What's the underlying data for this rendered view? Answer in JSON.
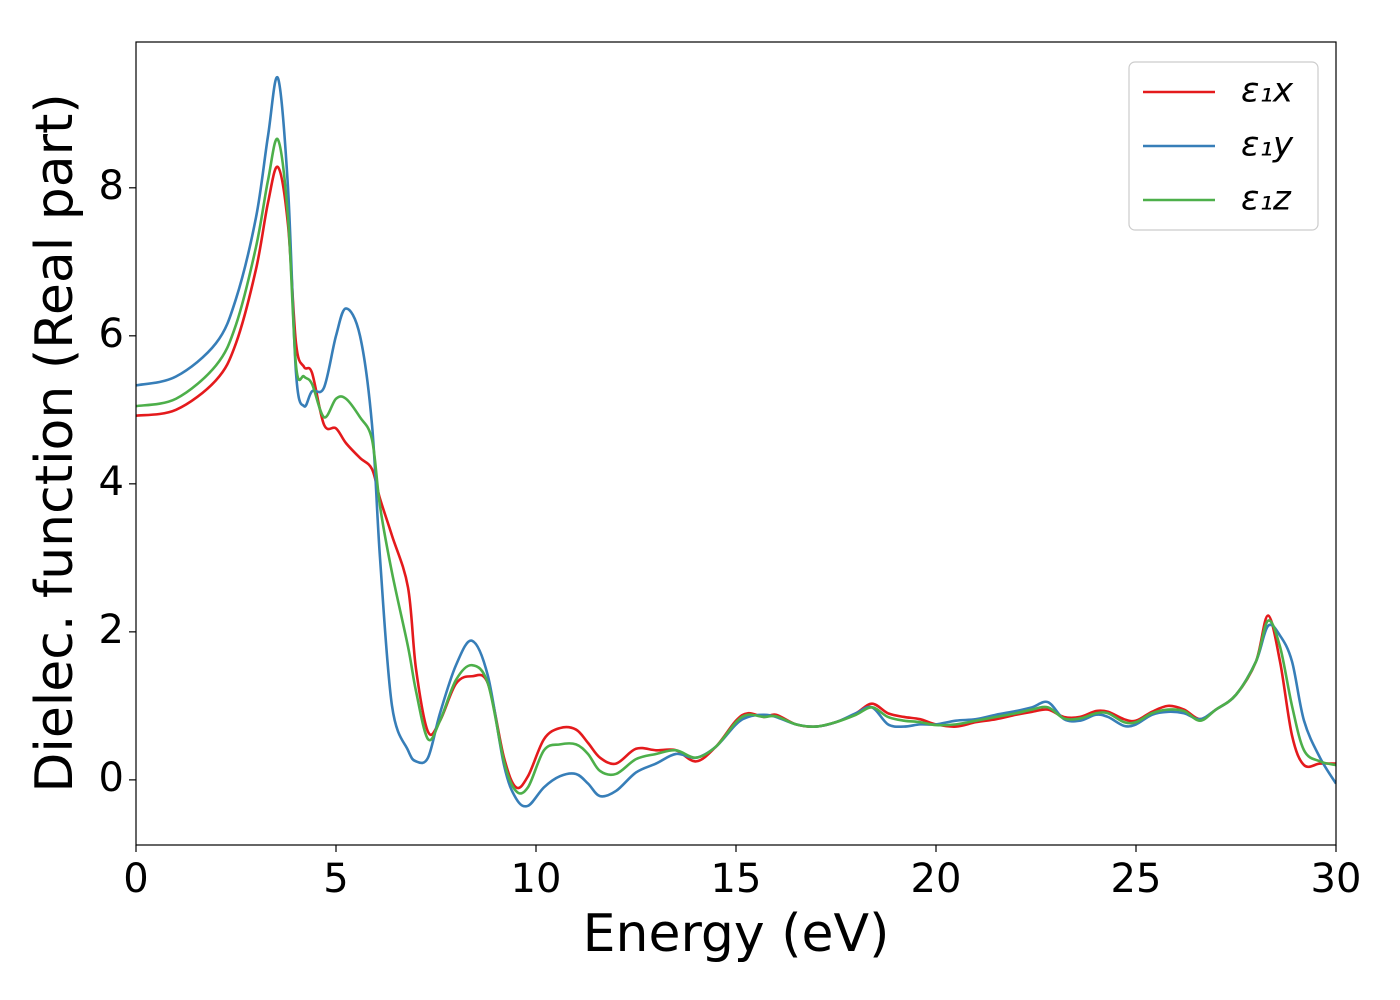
{
  "chart_data": {
    "type": "line",
    "xlabel": "Energy (eV)",
    "ylabel": "Dielec. function (Real part)",
    "x": [
      0,
      1,
      2,
      2.5,
      3,
      3.3,
      3.55,
      3.8,
      4.0,
      4.2,
      4.4,
      4.7,
      5.0,
      5.25,
      5.6,
      5.9,
      6.1,
      6.4,
      6.8,
      7.0,
      7.3,
      7.6,
      8.0,
      8.4,
      8.8,
      9.2,
      9.5,
      9.8,
      10.2,
      10.6,
      11.0,
      11.3,
      11.6,
      12.0,
      12.5,
      13.0,
      13.5,
      14.0,
      14.5,
      15.0,
      15.3,
      15.7,
      16.0,
      16.5,
      17.0,
      17.5,
      18.0,
      18.4,
      18.8,
      19.2,
      19.6,
      20.0,
      20.5,
      21.0,
      21.5,
      22.0,
      22.4,
      22.8,
      23.2,
      23.6,
      24.0,
      24.3,
      24.7,
      25.0,
      25.4,
      25.8,
      26.2,
      26.6,
      27.0,
      27.5,
      28.0,
      28.3,
      28.6,
      28.9,
      29.2,
      29.6,
      30
    ],
    "series": [
      {
        "name": "ε₁x",
        "color": "#e41a1c",
        "values": [
          4.92,
          5.0,
          5.4,
          5.9,
          6.9,
          7.8,
          8.28,
          7.5,
          5.9,
          5.58,
          5.5,
          4.8,
          4.75,
          4.55,
          4.35,
          4.2,
          3.8,
          3.3,
          2.6,
          1.5,
          0.65,
          0.8,
          1.3,
          1.4,
          1.3,
          0.3,
          -0.1,
          0.05,
          0.55,
          0.7,
          0.68,
          0.5,
          0.3,
          0.22,
          0.42,
          0.4,
          0.4,
          0.25,
          0.45,
          0.8,
          0.9,
          0.85,
          0.88,
          0.75,
          0.72,
          0.78,
          0.9,
          1.03,
          0.9,
          0.85,
          0.82,
          0.75,
          0.72,
          0.78,
          0.82,
          0.88,
          0.92,
          0.95,
          0.85,
          0.85,
          0.93,
          0.92,
          0.82,
          0.8,
          0.92,
          1.0,
          0.95,
          0.82,
          0.95,
          1.15,
          1.6,
          2.22,
          1.6,
          0.6,
          0.2,
          0.22,
          0.22
        ]
      },
      {
        "name": "ε₁y",
        "color": "#377eb8",
        "values": [
          5.33,
          5.45,
          5.9,
          6.5,
          7.6,
          8.7,
          9.48,
          8.0,
          5.5,
          5.05,
          5.25,
          5.3,
          6.0,
          6.37,
          6.0,
          4.8,
          3.0,
          1.0,
          0.4,
          0.25,
          0.3,
          0.9,
          1.55,
          1.88,
          1.4,
          0.2,
          -0.25,
          -0.35,
          -0.1,
          0.05,
          0.08,
          -0.05,
          -0.22,
          -0.15,
          0.1,
          0.22,
          0.35,
          0.3,
          0.45,
          0.75,
          0.85,
          0.88,
          0.85,
          0.75,
          0.72,
          0.78,
          0.9,
          0.98,
          0.75,
          0.72,
          0.75,
          0.75,
          0.8,
          0.82,
          0.88,
          0.93,
          0.98,
          1.05,
          0.82,
          0.8,
          0.88,
          0.85,
          0.73,
          0.75,
          0.88,
          0.92,
          0.9,
          0.82,
          0.95,
          1.15,
          1.6,
          2.08,
          1.95,
          1.6,
          0.8,
          0.3,
          -0.05
        ]
      },
      {
        "name": "ε₁z",
        "color": "#4daf4a",
        "values": [
          5.05,
          5.15,
          5.6,
          6.15,
          7.2,
          8.1,
          8.65,
          7.6,
          5.6,
          5.45,
          5.35,
          4.9,
          5.15,
          5.15,
          4.9,
          4.6,
          3.7,
          2.8,
          1.8,
          1.2,
          0.55,
          0.8,
          1.35,
          1.55,
          1.3,
          0.25,
          -0.15,
          -0.1,
          0.4,
          0.48,
          0.48,
          0.35,
          0.12,
          0.08,
          0.28,
          0.35,
          0.4,
          0.3,
          0.45,
          0.78,
          0.88,
          0.85,
          0.86,
          0.75,
          0.72,
          0.78,
          0.88,
          0.98,
          0.85,
          0.8,
          0.78,
          0.74,
          0.75,
          0.8,
          0.85,
          0.9,
          0.95,
          0.98,
          0.83,
          0.83,
          0.9,
          0.9,
          0.78,
          0.78,
          0.9,
          0.95,
          0.93,
          0.8,
          0.95,
          1.15,
          1.6,
          2.15,
          1.8,
          1.0,
          0.4,
          0.25,
          0.2
        ]
      }
    ],
    "xlim": [
      0,
      30
    ],
    "xticks": [
      0,
      5,
      10,
      15,
      20,
      25,
      30
    ],
    "ylim": [
      -0.88,
      9.97
    ],
    "yticks": [
      0,
      2,
      4,
      6,
      8
    ],
    "grid": false,
    "legend": "upper right"
  }
}
